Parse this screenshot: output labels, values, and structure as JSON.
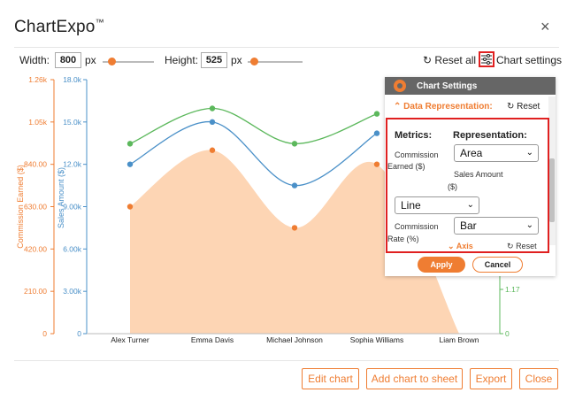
{
  "app": {
    "title": "ChartExpo",
    "trademark": "™",
    "close_label": "×"
  },
  "toolbar": {
    "width_label": "Width:",
    "width_value": "800",
    "width_unit": "px",
    "height_label": "Height:",
    "height_value": "525",
    "height_unit": "px",
    "reset_all_label": "Reset all",
    "chart_settings_label": "Chart settings"
  },
  "colors": {
    "accent": "#ef7d32",
    "area": "#fdd5b4",
    "line_blue": "#4a90c8",
    "line_green": "#5cb85c",
    "highlight": "#e02020"
  },
  "chart_data": {
    "type": "area",
    "categories": [
      "Alex Turner",
      "Emma Davis",
      "Michael Johnson",
      "Sophia Williams",
      "Liam Brown"
    ],
    "series": [
      {
        "name": "Commission Earned ($)",
        "representation": "Area",
        "values": [
          630,
          910,
          525,
          840,
          0
        ],
        "axis": "left-outer"
      },
      {
        "name": "Sales Amount ($)",
        "representation": "Line",
        "values": [
          12000,
          15000,
          10500,
          14200,
          0
        ],
        "axis": "left-inner"
      },
      {
        "name": "Commission Rate (%)",
        "representation": "Line",
        "values": [
          7.0,
          8.3,
          7.0,
          8.1,
          0
        ],
        "axis": "right"
      }
    ],
    "axes": {
      "left_outer": {
        "label": "Commission Earned ($)",
        "ticks": [
          "0",
          "210.00",
          "420.00",
          "630.00",
          "840.00",
          "1.05k",
          "1.26k"
        ],
        "ylim": [
          0,
          1260
        ]
      },
      "left_inner": {
        "label": "Sales Amount ($)",
        "ticks": [
          "0",
          "3.00k",
          "6.00k",
          "9.00k",
          "12.0k",
          "15.0k",
          "18.0k"
        ],
        "ylim": [
          0,
          18000
        ]
      },
      "right": {
        "ticks": [
          "0",
          "1.17"
        ]
      }
    }
  },
  "settings_panel": {
    "title": "Chart Settings",
    "section_title": "Data Representation:",
    "section_reset": "Reset",
    "metrics_header": "Metrics:",
    "representation_header": "Representation:",
    "rows": [
      {
        "metric_line1": "Commission",
        "metric_line2": "Earned ($)",
        "value": "Area"
      },
      {
        "metric_line1": "Sales Amount",
        "metric_line2": "($)",
        "value": "Line"
      },
      {
        "metric_line1": "Commission",
        "metric_line2": "Rate (%)",
        "value": "Bar"
      }
    ],
    "next_section": "Axis",
    "next_reset": "Reset",
    "apply_label": "Apply",
    "cancel_label": "Cancel"
  },
  "footer": {
    "edit_chart": "Edit chart",
    "add_to_sheet": "Add chart to sheet",
    "export": "Export",
    "close": "Close"
  }
}
